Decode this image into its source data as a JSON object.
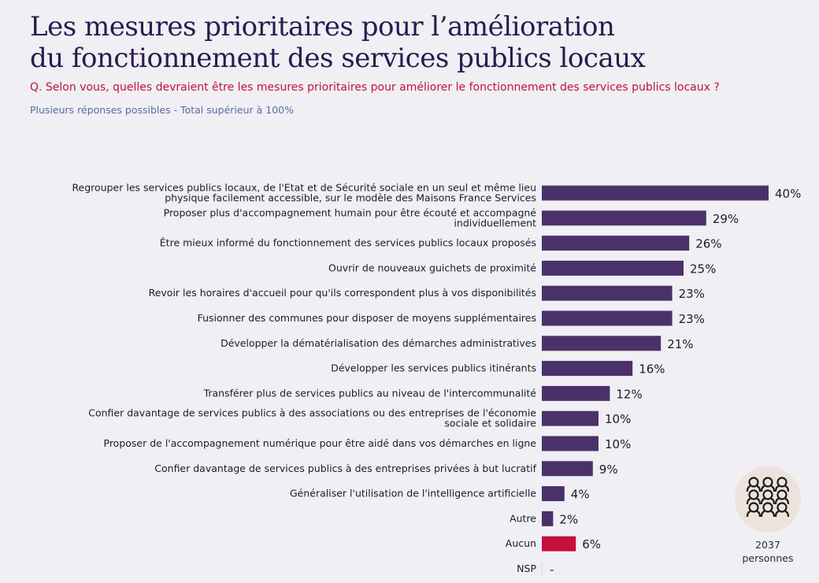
{
  "title_lines": [
    "Les mesures prioritaires pour l’amélioration",
    "du fonctionnement des services publics locaux"
  ],
  "question": "Q. Selon vous, quelles devraient être les mesures prioritaires pour améliorer le fonctionnement des services publics locaux ?",
  "note": "Plusieurs réponses possibles - Total supérieur à 100%",
  "sample": {
    "count": "2037",
    "unit": "personnes",
    "icon": "people-group-icon"
  },
  "colors": {
    "bar": "#4b3169",
    "highlight": "#c4103c",
    "background": "#efeff4"
  },
  "chart_data": {
    "type": "bar",
    "orientation": "horizontal",
    "unit": "%",
    "categories": [
      [
        "Regrouper les services publics locaux, de l'Etat et de Sécurité sociale en un seul et même lieu",
        "physique facilement accessible, sur le modèle des Maisons France Services"
      ],
      [
        "Proposer plus d'accompagnement humain pour être écouté et accompagné",
        "individuellement"
      ],
      [
        "Être mieux informé du fonctionnement des services publics locaux proposés"
      ],
      [
        "Ouvrir de nouveaux guichets de proximité"
      ],
      [
        "Revoir les horaires d'accueil pour qu'ils correspondent plus à vos disponibilités"
      ],
      [
        "Fusionner des communes pour disposer de moyens supplémentaires"
      ],
      [
        "Développer la dématérialisation des démarches administratives"
      ],
      [
        "Développer les services publics itinérants"
      ],
      [
        "Transférer plus de services publics au niveau de l'intercommunalité"
      ],
      [
        "Confier davantage de services publics à des associations ou des entreprises de l'économie",
        "sociale et solidaire"
      ],
      [
        "Proposer de l'accompagnement numérique pour être aidé dans vos démarches en ligne"
      ],
      [
        "Confier davantage de services publics à des entreprises privées à but lucratif"
      ],
      [
        "Généraliser l'utilisation de l'intelligence artificielle"
      ],
      [
        "Autre"
      ],
      [
        "Aucun"
      ],
      [
        "NSP"
      ]
    ],
    "values": [
      40,
      29,
      26,
      25,
      23,
      23,
      21,
      16,
      12,
      10,
      10,
      9,
      4,
      2,
      6,
      null
    ],
    "labels": [
      "40%",
      "29%",
      "26%",
      "25%",
      "23%",
      "23%",
      "21%",
      "16%",
      "12%",
      "10%",
      "10%",
      "9%",
      "4%",
      "2%",
      "6%",
      "-"
    ],
    "highlight": [
      "Aucun"
    ],
    "xlim": [
      0,
      40
    ],
    "grid": false
  }
}
